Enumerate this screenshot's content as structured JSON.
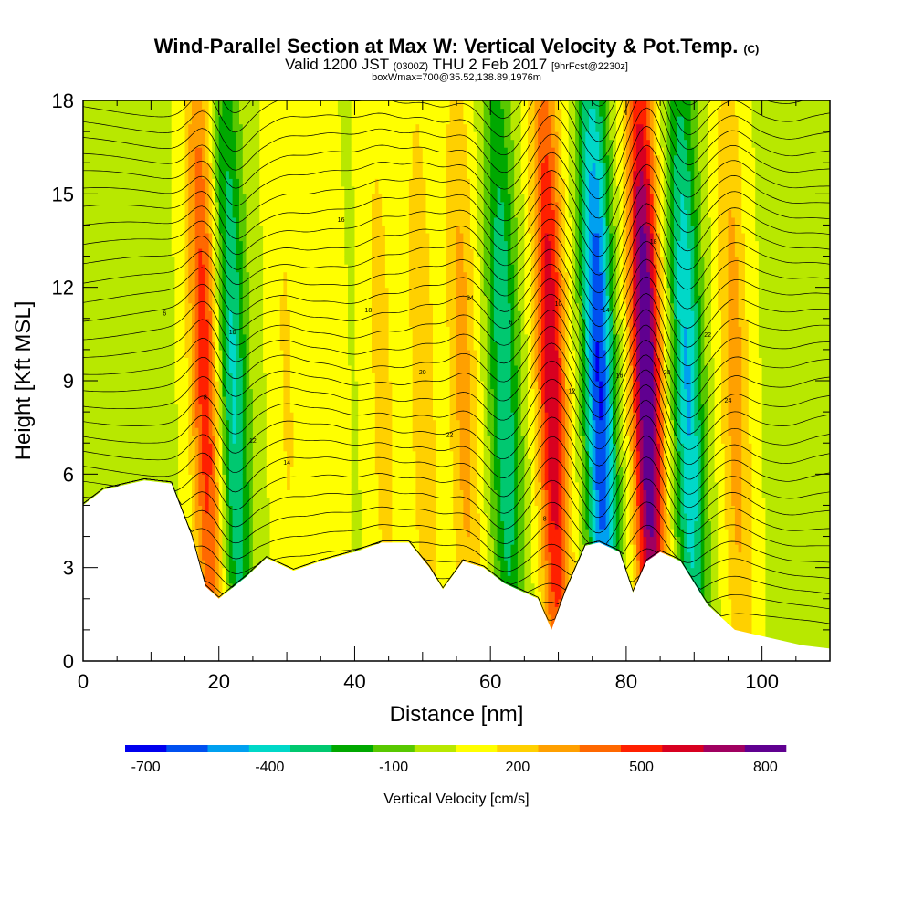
{
  "chart_data": {
    "type": "heatmap",
    "title": "Wind-Parallel Section at Max W: Vertical Velocity & Pot.Temp.",
    "title_suffix": "(C)",
    "subtitle_valid": "Valid 1200 JST",
    "subtitle_utc": "(0300Z)",
    "subtitle_date": "THU 2 Feb 2017",
    "subtitle_fcst": "[9hrFcst@2230z]",
    "subtitle_box": "boxWmax=700@35.52,138.89,1976m",
    "xlabel": "Distance [nm]",
    "ylabel": "Height [Kft MSL]",
    "xlim": [
      0,
      110
    ],
    "ylim": [
      0,
      18
    ],
    "x_ticks": [
      0,
      20,
      40,
      60,
      80,
      100
    ],
    "y_ticks": [
      0,
      3,
      6,
      9,
      12,
      15,
      18
    ],
    "colorbar": {
      "label": "Vertical Velocity [cm/s]",
      "tick_labels": [
        "-700",
        "-400",
        "-100",
        "200",
        "500",
        "800"
      ],
      "tick_values": [
        -700,
        -400,
        -100,
        200,
        500,
        800
      ],
      "min": -750,
      "max": 850,
      "colors": [
        "#0000ee",
        "#0050f0",
        "#00a0f0",
        "#00d8c8",
        "#00c870",
        "#00a800",
        "#58c800",
        "#b8e800",
        "#ffff00",
        "#ffd000",
        "#ffa000",
        "#ff6800",
        "#ff2000",
        "#d80020",
        "#a00060",
        "#600090"
      ]
    },
    "w_peaks": [
      {
        "x": 18,
        "w": 480
      },
      {
        "x": 22,
        "w": -420
      },
      {
        "x": 30,
        "w": 120
      },
      {
        "x": 36,
        "w": 80
      },
      {
        "x": 44,
        "w": 150
      },
      {
        "x": 50,
        "w": 180
      },
      {
        "x": 56,
        "w": 250
      },
      {
        "x": 62,
        "w": -380
      },
      {
        "x": 69,
        "w": 600
      },
      {
        "x": 76,
        "w": -700
      },
      {
        "x": 83,
        "w": 850
      },
      {
        "x": 89,
        "w": -500
      },
      {
        "x": 96,
        "w": 260
      },
      {
        "x": 104,
        "w": -80
      }
    ],
    "terrain_kft": [
      {
        "x": 0,
        "h": 5.0
      },
      {
        "x": 3,
        "h": 5.5
      },
      {
        "x": 9,
        "h": 5.8
      },
      {
        "x": 13,
        "h": 5.7
      },
      {
        "x": 16,
        "h": 4.0
      },
      {
        "x": 18,
        "h": 2.4
      },
      {
        "x": 20,
        "h": 2.0
      },
      {
        "x": 24,
        "h": 2.7
      },
      {
        "x": 27,
        "h": 3.3
      },
      {
        "x": 31,
        "h": 2.9
      },
      {
        "x": 35,
        "h": 3.2
      },
      {
        "x": 40,
        "h": 3.5
      },
      {
        "x": 44,
        "h": 3.8
      },
      {
        "x": 48,
        "h": 3.8
      },
      {
        "x": 51,
        "h": 3.0
      },
      {
        "x": 53,
        "h": 2.3
      },
      {
        "x": 56,
        "h": 3.2
      },
      {
        "x": 59,
        "h": 3.0
      },
      {
        "x": 62,
        "h": 2.5
      },
      {
        "x": 67,
        "h": 2.0
      },
      {
        "x": 69,
        "h": 1.0
      },
      {
        "x": 71,
        "h": 2.2
      },
      {
        "x": 74,
        "h": 3.7
      },
      {
        "x": 76,
        "h": 3.8
      },
      {
        "x": 79,
        "h": 3.5
      },
      {
        "x": 81,
        "h": 2.2
      },
      {
        "x": 83,
        "h": 3.2
      },
      {
        "x": 85,
        "h": 3.5
      },
      {
        "x": 88,
        "h": 3.2
      },
      {
        "x": 92,
        "h": 1.8
      },
      {
        "x": 96,
        "h": 1.0
      },
      {
        "x": 100,
        "h": 0.8
      },
      {
        "x": 106,
        "h": 0.5
      },
      {
        "x": 110,
        "h": 0.4
      }
    ],
    "contour_labels": [
      "6",
      "8",
      "10",
      "12",
      "14",
      "16",
      "18",
      "20",
      "22",
      "24"
    ]
  }
}
